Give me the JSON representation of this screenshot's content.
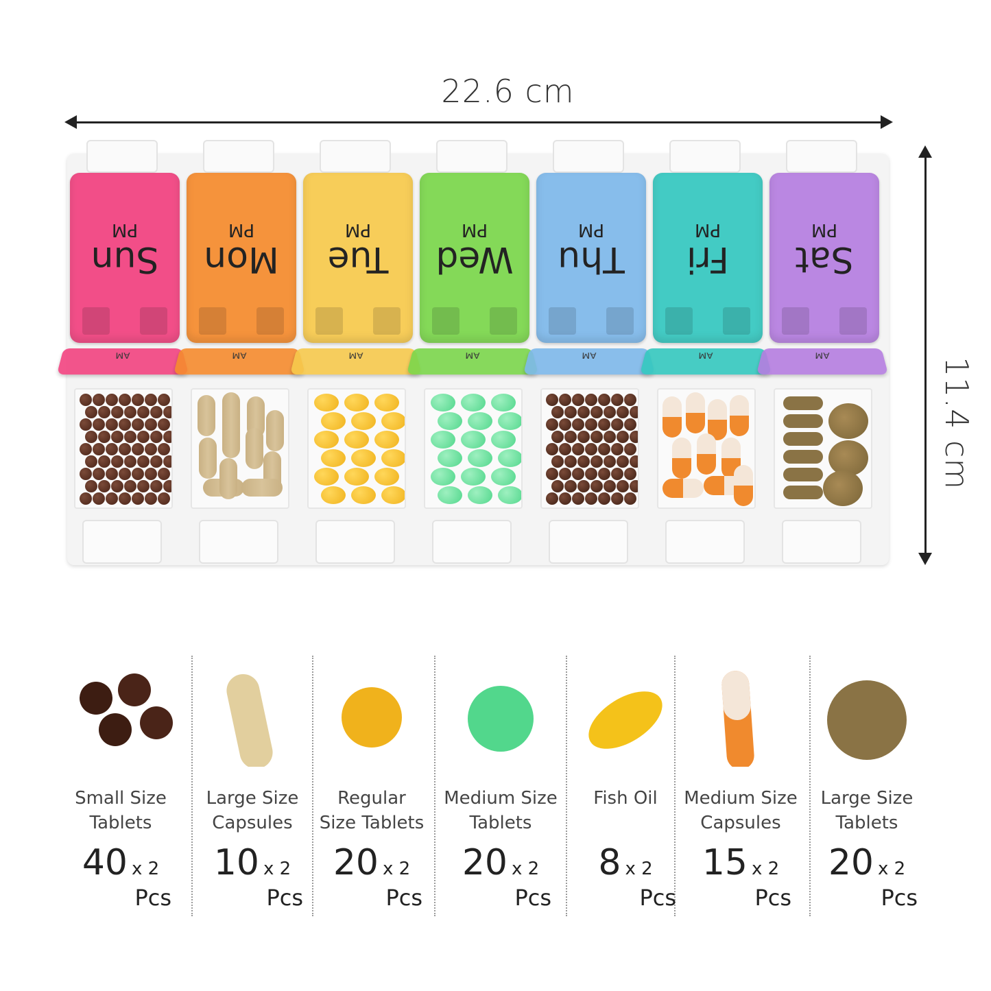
{
  "dimensions": {
    "width": "22.6 cm",
    "height": "11.4 cm"
  },
  "organizer": {
    "days": [
      {
        "day": "Sun",
        "pm": "PM",
        "am": "AM",
        "color": "#f2417f"
      },
      {
        "day": "Mon",
        "pm": "PM",
        "am": "AM",
        "color": "#f58a2c"
      },
      {
        "day": "Tue",
        "pm": "PM",
        "am": "AM",
        "color": "#f7c94b"
      },
      {
        "day": "Wed",
        "pm": "PM",
        "am": "AM",
        "color": "#7ad64a"
      },
      {
        "day": "Thu",
        "pm": "PM",
        "am": "AM",
        "color": "#7db8ea"
      },
      {
        "day": "Fri",
        "pm": "PM",
        "am": "AM",
        "color": "#33c7bf"
      },
      {
        "day": "Sat",
        "pm": "PM",
        "am": "AM",
        "color": "#b57de0"
      }
    ]
  },
  "legend": [
    {
      "name_line1": "Small Size",
      "name_line2": "Tablets",
      "count": "40",
      "mult": "x 2",
      "unit": "Pcs",
      "icon": "small-tablets-icon"
    },
    {
      "name_line1": "Large Size",
      "name_line2": "Capsules",
      "count": "10",
      "mult": "x 2",
      "unit": "Pcs",
      "icon": "large-capsule-icon"
    },
    {
      "name_line1": "Regular",
      "name_line2": "Size Tablets",
      "count": "20",
      "mult": "x 2",
      "unit": "Pcs",
      "icon": "regular-tablet-icon"
    },
    {
      "name_line1": "Medium Size",
      "name_line2": "Tablets",
      "count": "20",
      "mult": "x 2",
      "unit": "Pcs",
      "icon": "medium-tablet-icon"
    },
    {
      "name_line1": "Fish Oil",
      "name_line2": "",
      "count": "8",
      "mult": "x 2",
      "unit": "Pcs",
      "icon": "fish-oil-icon"
    },
    {
      "name_line1": "Medium Size",
      "name_line2": "Capsules",
      "count": "15",
      "mult": "x 2",
      "unit": "Pcs",
      "icon": "medium-capsule-icon"
    },
    {
      "name_line1": "Large Size",
      "name_line2": "Tablets",
      "count": "20",
      "mult": "x 2",
      "unit": "Pcs",
      "icon": "large-tablet-icon"
    }
  ]
}
